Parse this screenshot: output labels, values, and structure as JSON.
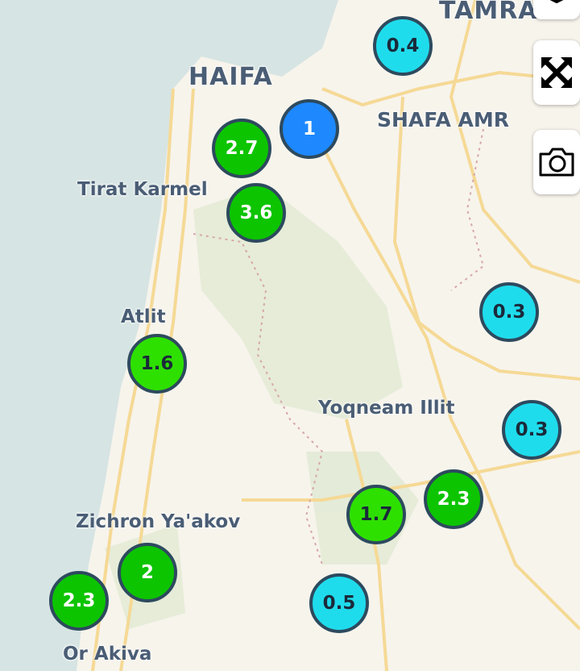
{
  "map": {
    "labels": [
      {
        "text": "HAIFA",
        "kind": "city"
      },
      {
        "text": "TAMRA",
        "kind": "city"
      },
      {
        "text": "SHAFA AMR",
        "kind": "city"
      },
      {
        "text": "Tirat Karmel",
        "kind": "town"
      },
      {
        "text": "Atlit",
        "kind": "town"
      },
      {
        "text": "Yoqneam Illit",
        "kind": "town"
      },
      {
        "text": "Zichron Ya'akov",
        "kind": "town"
      },
      {
        "text": "Or Akiva",
        "kind": "town"
      }
    ],
    "markers": [
      {
        "value": "0.4",
        "color": "#1fdcec"
      },
      {
        "value": "1",
        "color": "#1e88ff"
      },
      {
        "value": "2.7",
        "color": "#0dc400"
      },
      {
        "value": "3.6",
        "color": "#0dc400"
      },
      {
        "value": "0.3",
        "color": "#1fdcec"
      },
      {
        "value": "1.6",
        "color": "#2ee000"
      },
      {
        "value": "0.3",
        "color": "#1fdcec"
      },
      {
        "value": "2.3",
        "color": "#0dc400"
      },
      {
        "value": "1.7",
        "color": "#2ee000"
      },
      {
        "value": "2",
        "color": "#0dc400"
      },
      {
        "value": "2.3",
        "color": "#0dc400"
      },
      {
        "value": "0.5",
        "color": "#1fdcec"
      }
    ]
  },
  "controls": [
    {
      "icon": "layers-icon"
    },
    {
      "icon": "fullscreen-icon"
    },
    {
      "icon": "camera-icon"
    }
  ],
  "colors": {
    "sea": "#d6e4e3",
    "land": "#f7f4ec",
    "forest": "#e3ebd6",
    "road": "#f5d995",
    "marker_border": "#2d4a5e"
  }
}
